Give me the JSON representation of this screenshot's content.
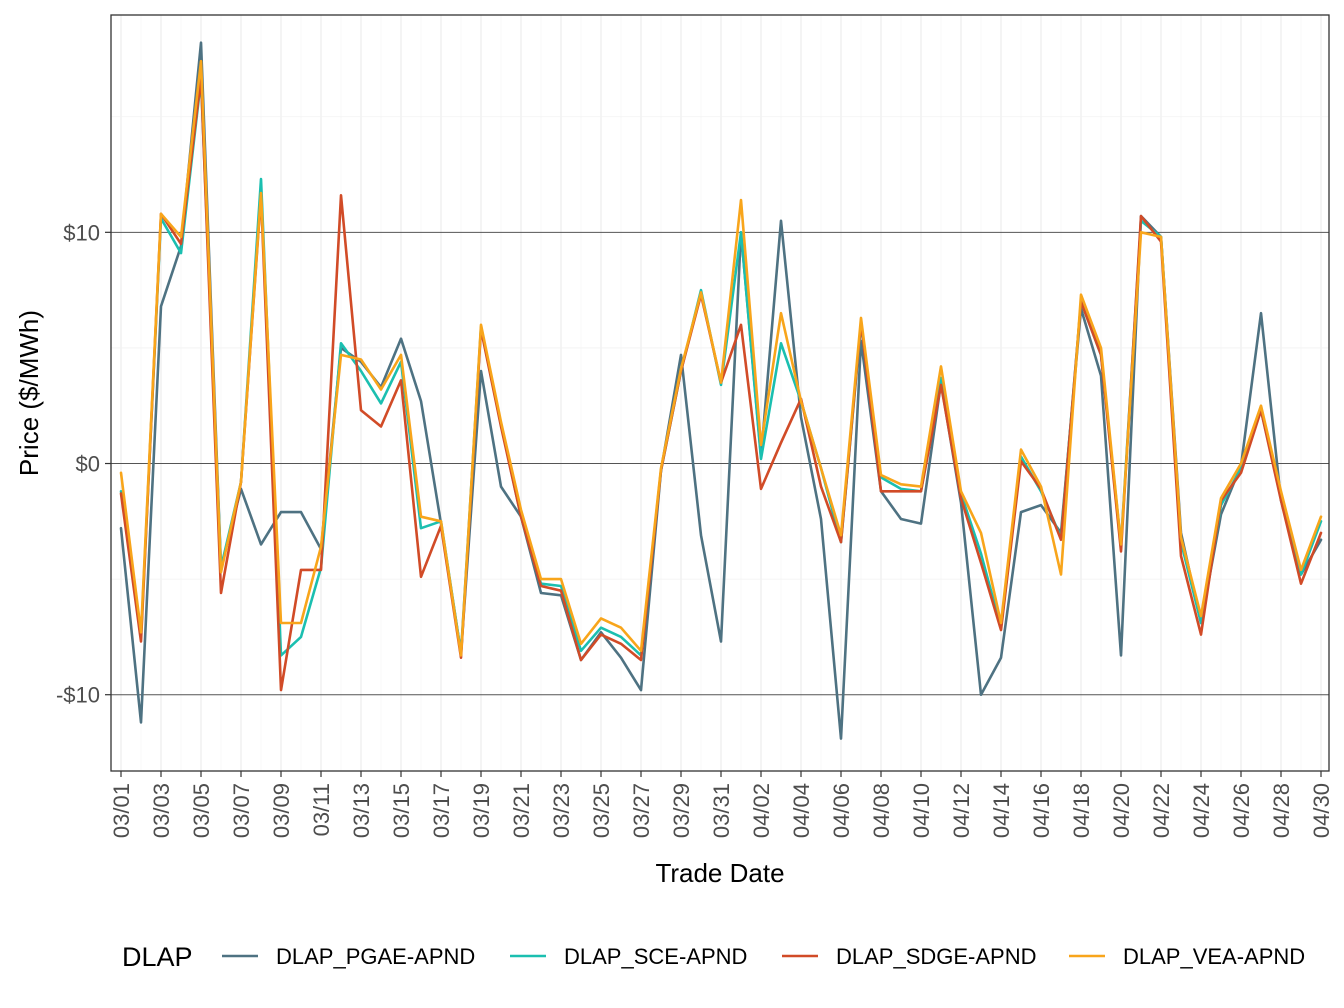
{
  "chart_data": {
    "type": "line",
    "xlabel": "Trade Date",
    "ylabel": "Price ($/MWh)",
    "x_ticks": [
      "03/01",
      "03/03",
      "03/05",
      "03/07",
      "03/09",
      "03/11",
      "03/13",
      "03/15",
      "03/17",
      "03/19",
      "03/21",
      "03/23",
      "03/25",
      "03/27",
      "03/29",
      "03/31",
      "04/02",
      "04/04",
      "04/06",
      "04/08",
      "04/10",
      "04/12",
      "04/14",
      "04/16",
      "04/18",
      "04/20",
      "04/22",
      "04/24",
      "04/26",
      "04/28",
      "04/30"
    ],
    "y_ticks": [
      {
        "value": 10,
        "label": "$10"
      },
      {
        "value": 0,
        "label": "$0"
      },
      {
        "value": -10,
        "label": "-$10"
      }
    ],
    "ylim": [
      -13.3,
      19.4
    ],
    "x": [
      "03/01",
      "03/02",
      "03/03",
      "03/04",
      "03/05",
      "03/06",
      "03/07",
      "03/08",
      "03/09",
      "03/10",
      "03/11",
      "03/12",
      "03/13",
      "03/14",
      "03/15",
      "03/16",
      "03/17",
      "03/18",
      "03/19",
      "03/20",
      "03/21",
      "03/22",
      "03/23",
      "03/24",
      "03/25",
      "03/26",
      "03/27",
      "03/28",
      "03/29",
      "03/30",
      "03/31",
      "04/01",
      "04/02",
      "04/03",
      "04/04",
      "04/05",
      "04/06",
      "04/07",
      "04/08",
      "04/09",
      "04/10",
      "04/11",
      "04/12",
      "04/13",
      "04/14",
      "04/15",
      "04/16",
      "04/17",
      "04/18",
      "04/19",
      "04/20",
      "04/21",
      "04/22",
      "04/23",
      "04/24",
      "04/25",
      "04/26",
      "04/27",
      "04/28",
      "04/29",
      "04/30"
    ],
    "legend": {
      "title": "DLAP",
      "position": "bottom"
    },
    "grid": true,
    "series": [
      {
        "name": "DLAP_PGAE-APND",
        "color": "#4e7282",
        "values": [
          -2.8,
          -11.2,
          6.8,
          9.4,
          18.2,
          -4.5,
          -1.1,
          -3.5,
          -2.1,
          -2.1,
          -3.7,
          5.0,
          4.4,
          3.3,
          5.4,
          2.7,
          -2.6,
          -8.2,
          4.0,
          -1.0,
          -2.3,
          -5.6,
          -5.7,
          -8.5,
          -7.3,
          -8.4,
          -9.8,
          -0.3,
          4.7,
          -3.1,
          -7.7,
          10.0,
          0.3,
          10.5,
          2.0,
          -2.4,
          -11.9,
          5.3,
          -1.2,
          -2.4,
          -2.6,
          3.5,
          -1.7,
          -10.0,
          -8.4,
          -2.1,
          -1.8,
          -3.0,
          6.7,
          3.8,
          -8.3,
          10.7,
          9.8,
          -3.0,
          -6.9,
          -2.2,
          -0.1,
          6.5,
          -1.6,
          -4.8,
          -3.3
        ]
      },
      {
        "name": "DLAP_SCE-APND",
        "color": "#1bbfb0",
        "values": [
          -1.2,
          -7.5,
          10.6,
          9.1,
          16.6,
          -4.5,
          -0.8,
          12.3,
          -8.3,
          -7.5,
          -4.5,
          5.2,
          4.0,
          2.6,
          4.4,
          -2.8,
          -2.5,
          -8.2,
          5.9,
          1.7,
          -2.3,
          -5.2,
          -5.3,
          -8.1,
          -7.1,
          -7.5,
          -8.3,
          -0.3,
          4.0,
          7.5,
          3.4,
          10.0,
          0.2,
          5.2,
          2.7,
          -0.2,
          -3.4,
          6.0,
          -0.6,
          -1.1,
          -1.2,
          3.7,
          -1.3,
          -3.9,
          -7.1,
          0.3,
          -1.2,
          -3.2,
          7.0,
          4.7,
          -3.5,
          10.5,
          9.8,
          -3.4,
          -6.9,
          -1.8,
          -0.2,
          2.3,
          -1.4,
          -4.8,
          -2.5
        ]
      },
      {
        "name": "DLAP_SDGE-APND",
        "color": "#d14b27",
        "values": [
          -1.3,
          -7.7,
          10.8,
          9.5,
          16.7,
          -5.6,
          -0.8,
          11.6,
          -9.8,
          -4.6,
          -4.6,
          11.6,
          2.3,
          1.6,
          3.6,
          -4.9,
          -2.7,
          -8.4,
          5.8,
          1.6,
          -2.3,
          -5.3,
          -5.5,
          -8.5,
          -7.4,
          -7.8,
          -8.5,
          -0.3,
          4.0,
          7.3,
          3.5,
          6.0,
          -1.1,
          0.9,
          2.8,
          -1.0,
          -3.4,
          6.1,
          -1.2,
          -1.2,
          -1.2,
          3.4,
          -1.5,
          -4.3,
          -7.2,
          0.1,
          -1.1,
          -3.3,
          7.0,
          4.7,
          -3.8,
          10.7,
          9.6,
          -4.0,
          -7.4,
          -1.6,
          -0.4,
          2.3,
          -1.6,
          -5.2,
          -3.0
        ]
      },
      {
        "name": "DLAP_VEA-APND",
        "color": "#f8a51b",
        "values": [
          -0.4,
          -7.3,
          10.8,
          9.8,
          17.4,
          -4.7,
          -0.8,
          11.7,
          -6.9,
          -6.9,
          -3.6,
          4.7,
          4.5,
          3.2,
          4.7,
          -2.3,
          -2.5,
          -8.3,
          6.0,
          1.8,
          -2.0,
          -5.0,
          -5.0,
          -7.8,
          -6.7,
          -7.1,
          -8.1,
          -0.2,
          4.1,
          7.4,
          3.5,
          11.4,
          0.8,
          6.5,
          2.7,
          -0.2,
          -3.1,
          6.3,
          -0.5,
          -0.9,
          -1.0,
          4.2,
          -1.2,
          -3.0,
          -6.9,
          0.6,
          -1.0,
          -4.8,
          7.3,
          5.0,
          -3.5,
          10.0,
          9.8,
          -3.2,
          -6.6,
          -1.5,
          0.0,
          2.5,
          -1.2,
          -4.6,
          -2.3
        ]
      }
    ]
  }
}
